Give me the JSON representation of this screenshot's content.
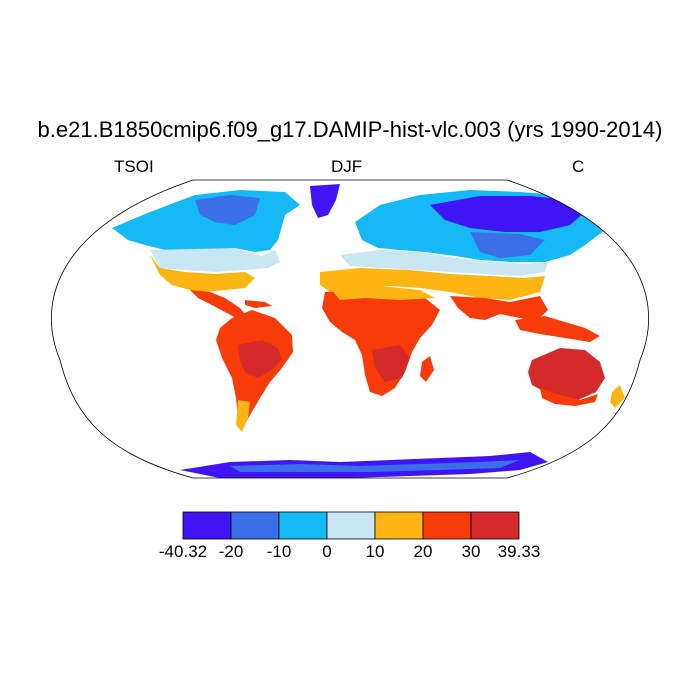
{
  "title": "b.e21.B1850cmip6.f09_g17.DAMIP-hist-vlc.003 (yrs 1990-2014)",
  "left_label": "TSOI",
  "center_label": "DJF",
  "right_label": "C",
  "colorbar": {
    "colors": [
      "#3f14f5",
      "#3a6fe8",
      "#14b9f5",
      "#c8e6f3",
      "#fdb514",
      "#f73c0a",
      "#d42a2a"
    ],
    "tick_labels": [
      "-40.32",
      "-20",
      "-10",
      "0",
      "10",
      "20",
      "30",
      "39.33"
    ]
  }
}
